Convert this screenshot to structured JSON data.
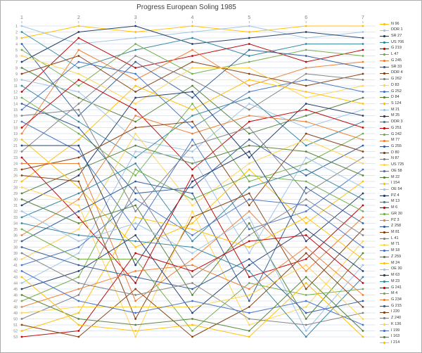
{
  "title": "Progress European Soling 1985",
  "chart_data": {
    "type": "line",
    "subtype": "bump-rank-progression",
    "title": "Progress European Soling 1985",
    "xlabel": "",
    "ylabel": "",
    "x": [
      1,
      2,
      3,
      4,
      5,
      6,
      7
    ],
    "y_axis": {
      "min": 1,
      "max": 53,
      "tick_step": 1,
      "inverted": true
    },
    "grid": "horizontal",
    "legend_position": "right",
    "gridline_color": "#d9dfec",
    "axis_text_color": "#808080",
    "palette": [
      "#FFC000",
      "#9DC3E6",
      "#1F3864",
      "#31859C",
      "#C00000",
      "#70AD47",
      "#ED7D31",
      "#2E5B97",
      "#843C0C",
      "#808080",
      "#FFD34D",
      "#4472C4",
      "#538135"
    ],
    "series": [
      {
        "name": "N 96",
        "values": [
          3,
          1,
          2,
          1,
          2,
          1,
          1
        ]
      },
      {
        "name": "DDR 1",
        "values": [
          1,
          4,
          3,
          2,
          1,
          3,
          2
        ]
      },
      {
        "name": "SR 27",
        "values": [
          7,
          2,
          1,
          4,
          3,
          2,
          3
        ]
      },
      {
        "name": "US 706",
        "values": [
          2,
          8,
          5,
          3,
          6,
          4,
          4
        ]
      },
      {
        "name": "G 219",
        "values": [
          12,
          3,
          8,
          6,
          4,
          7,
          5
        ]
      },
      {
        "name": "L 47",
        "values": [
          5,
          11,
          4,
          9,
          7,
          5,
          6
        ]
      },
      {
        "name": "G 245",
        "values": [
          19,
          5,
          10,
          5,
          11,
          8,
          7
        ]
      },
      {
        "name": "SR 33",
        "values": [
          4,
          16,
          7,
          13,
          5,
          6,
          8
        ]
      },
      {
        "name": "DDR 4",
        "values": [
          9,
          6,
          12,
          7,
          9,
          11,
          9
        ]
      },
      {
        "name": "G 262",
        "values": [
          22,
          14,
          6,
          10,
          15,
          9,
          10
        ]
      },
      {
        "name": "D 83",
        "values": [
          6,
          9,
          14,
          8,
          8,
          13,
          11
        ]
      },
      {
        "name": "G 252",
        "values": [
          15,
          7,
          9,
          18,
          12,
          10,
          12
        ]
      },
      {
        "name": "D 84",
        "values": [
          8,
          13,
          17,
          11,
          19,
          16,
          13
        ]
      },
      {
        "name": "S 124",
        "values": [
          27,
          20,
          11,
          15,
          10,
          12,
          14
        ]
      },
      {
        "name": "M 21",
        "values": [
          10,
          12,
          20,
          22,
          14,
          18,
          15
        ]
      },
      {
        "name": "M 25",
        "values": [
          31,
          26,
          13,
          12,
          23,
          14,
          16
        ]
      },
      {
        "name": "DDR 3",
        "values": [
          11,
          17,
          23,
          16,
          13,
          21,
          17
        ]
      },
      {
        "name": "G 251",
        "values": [
          18,
          10,
          15,
          25,
          17,
          15,
          18
        ]
      },
      {
        "name": "G 242",
        "values": [
          13,
          19,
          26,
          14,
          27,
          24,
          19
        ]
      },
      {
        "name": "M 77",
        "values": [
          36,
          30,
          16,
          19,
          16,
          17,
          20
        ]
      },
      {
        "name": "G 255",
        "values": [
          14,
          18,
          29,
          28,
          20,
          26,
          21
        ]
      },
      {
        "name": "D 80",
        "values": [
          25,
          23,
          18,
          17,
          31,
          19,
          22
        ]
      },
      {
        "name": "N 87",
        "values": [
          16,
          15,
          32,
          21,
          18,
          29,
          23
        ]
      },
      {
        "name": "US 725",
        "values": [
          40,
          35,
          19,
          31,
          24,
          20,
          24
        ]
      },
      {
        "name": "OE 58",
        "values": [
          17,
          22,
          35,
          20,
          35,
          32,
          25
        ]
      },
      {
        "name": "M 22",
        "values": [
          29,
          25,
          21,
          24,
          21,
          22,
          26
        ]
      },
      {
        "name": "I 154",
        "values": [
          20,
          28,
          38,
          34,
          25,
          34,
          27
        ]
      },
      {
        "name": "OE 54",
        "values": [
          44,
          39,
          22,
          23,
          39,
          23,
          28
        ]
      },
      {
        "name": "PZ 4",
        "values": [
          21,
          21,
          41,
          27,
          22,
          37,
          29
        ]
      },
      {
        "name": "M 13",
        "values": [
          33,
          29,
          24,
          37,
          28,
          25,
          30
        ]
      },
      {
        "name": "M 6",
        "values": [
          23,
          33,
          44,
          26,
          43,
          40,
          31
        ]
      },
      {
        "name": "GR 30",
        "values": [
          47,
          43,
          25,
          30,
          26,
          27,
          32
        ]
      },
      {
        "name": "PZ 3",
        "values": [
          24,
          24,
          47,
          40,
          32,
          42,
          33
        ]
      },
      {
        "name": "Z 258",
        "values": [
          37,
          32,
          27,
          29,
          47,
          28,
          34
        ]
      },
      {
        "name": "M 81",
        "values": [
          26,
          27,
          50,
          33,
          29,
          45,
          35
        ]
      },
      {
        "name": "L 41",
        "values": [
          50,
          46,
          28,
          43,
          36,
          30,
          36
        ]
      },
      {
        "name": "M 71",
        "values": [
          28,
          31,
          53,
          32,
          51,
          48,
          37
        ]
      },
      {
        "name": "M 18",
        "values": [
          41,
          38,
          30,
          36,
          30,
          31,
          38
        ]
      },
      {
        "name": "Z 259",
        "values": [
          30,
          34,
          31,
          46,
          34,
          50,
          39
        ]
      },
      {
        "name": "M 24",
        "values": [
          52,
          49,
          33,
          35,
          38,
          33,
          40
        ]
      },
      {
        "name": "OE 30",
        "values": [
          32,
          37,
          34,
          39,
          33,
          52,
          41
        ]
      },
      {
        "name": "M 63",
        "values": [
          45,
          42,
          36,
          49,
          41,
          35,
          42
        ]
      },
      {
        "name": "M 23",
        "values": [
          34,
          36,
          37,
          38,
          42,
          53,
          43
        ]
      },
      {
        "name": "G 241",
        "values": [
          53,
          52,
          39,
          42,
          37,
          36,
          44
        ]
      },
      {
        "name": "M 4",
        "values": [
          35,
          40,
          40,
          52,
          44,
          46,
          45
        ]
      },
      {
        "name": "G 234",
        "values": [
          48,
          45,
          42,
          41,
          45,
          38,
          46
        ]
      },
      {
        "name": "G 215",
        "values": [
          38,
          41,
          43,
          45,
          40,
          49,
          47
        ]
      },
      {
        "name": "I 220",
        "values": [
          51,
          53,
          45,
          53,
          48,
          39,
          48
        ]
      },
      {
        "name": "Z 240",
        "values": [
          39,
          44,
          46,
          44,
          50,
          51,
          49
        ]
      },
      {
        "name": "K 136",
        "values": [
          49,
          48,
          48,
          48,
          46,
          41,
          50
        ]
      },
      {
        "name": "I 199",
        "values": [
          42,
          47,
          49,
          47,
          49,
          47,
          51
        ]
      },
      {
        "name": "I 163",
        "values": [
          46,
          50,
          51,
          50,
          52,
          43,
          52
        ]
      },
      {
        "name": "I 214",
        "values": [
          43,
          51,
          52,
          51,
          53,
          44,
          53
        ]
      }
    ]
  }
}
